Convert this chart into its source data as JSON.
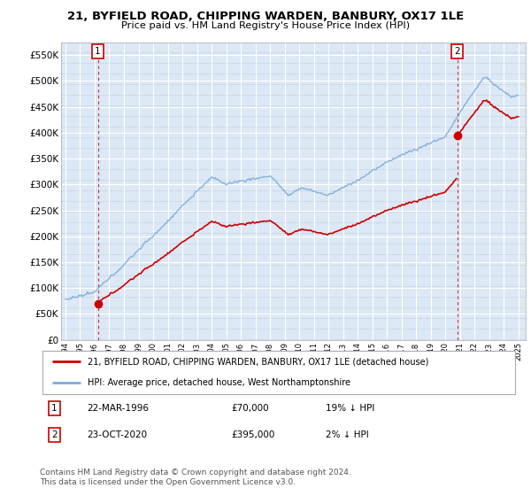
{
  "title": "21, BYFIELD ROAD, CHIPPING WARDEN, BANBURY, OX17 1LE",
  "subtitle": "Price paid vs. HM Land Registry's House Price Index (HPI)",
  "xlim": [
    1993.7,
    2025.5
  ],
  "ylim": [
    0,
    575000
  ],
  "yticks": [
    0,
    50000,
    100000,
    150000,
    200000,
    250000,
    300000,
    350000,
    400000,
    450000,
    500000,
    550000
  ],
  "ytick_labels": [
    "£0",
    "£50K",
    "£100K",
    "£150K",
    "£200K",
    "£250K",
    "£300K",
    "£350K",
    "£400K",
    "£450K",
    "£500K",
    "£550K"
  ],
  "xticks": [
    1994,
    1995,
    1996,
    1997,
    1998,
    1999,
    2000,
    2001,
    2002,
    2003,
    2004,
    2005,
    2006,
    2007,
    2008,
    2009,
    2010,
    2011,
    2012,
    2013,
    2014,
    2015,
    2016,
    2017,
    2018,
    2019,
    2020,
    2021,
    2022,
    2023,
    2024,
    2025
  ],
  "sale1_x": 1996.22,
  "sale1_y": 70000,
  "sale2_x": 2020.81,
  "sale2_y": 395000,
  "sale_color": "#cc0000",
  "hpi_color": "#7aabdb",
  "bg_color": "#dce8f5",
  "grid_color": "#ffffff",
  "legend_line1": "21, BYFIELD ROAD, CHIPPING WARDEN, BANBURY, OX17 1LE (detached house)",
  "legend_line2": "HPI: Average price, detached house, West Northamptonshire",
  "table_row1": [
    "1",
    "22-MAR-1996",
    "£70,000",
    "19% ↓ HPI"
  ],
  "table_row2": [
    "2",
    "23-OCT-2020",
    "£395,000",
    "2% ↓ HPI"
  ],
  "footnote": "Contains HM Land Registry data © Crown copyright and database right 2024.\nThis data is licensed under the Open Government Licence v3.0."
}
